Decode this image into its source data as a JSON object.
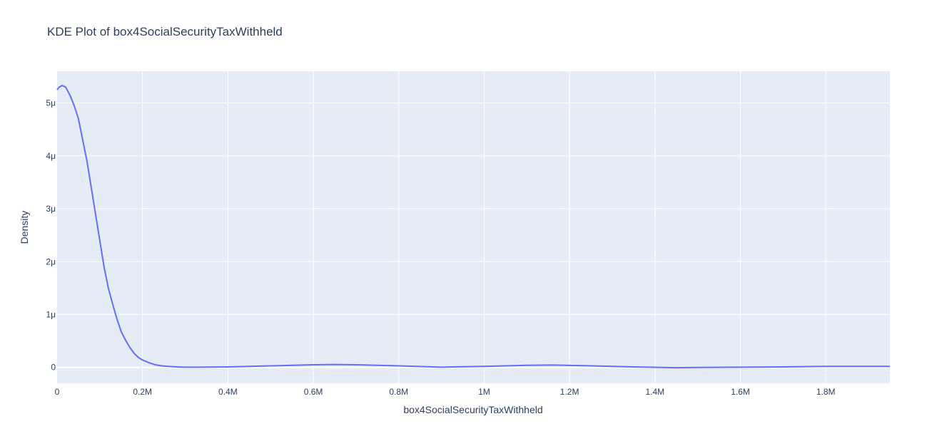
{
  "chart_data": {
    "type": "line",
    "title": "KDE Plot of box4SocialSecurityTaxWithheld",
    "xlabel": "box4SocialSecurityTaxWithheld",
    "ylabel": "Density",
    "xlim": [
      0,
      1950000
    ],
    "ylim": [
      -3e-07,
      5.6e-06
    ],
    "x_ticks": [
      {
        "value": 0,
        "label": "0"
      },
      {
        "value": 200000,
        "label": "0.2M"
      },
      {
        "value": 400000,
        "label": "0.4M"
      },
      {
        "value": 600000,
        "label": "0.6M"
      },
      {
        "value": 800000,
        "label": "0.8M"
      },
      {
        "value": 1000000,
        "label": "1M"
      },
      {
        "value": 1200000,
        "label": "1.2M"
      },
      {
        "value": 1400000,
        "label": "1.4M"
      },
      {
        "value": 1600000,
        "label": "1.6M"
      },
      {
        "value": 1800000,
        "label": "1.8M"
      }
    ],
    "y_ticks": [
      {
        "value": 0,
        "label": "0"
      },
      {
        "value": 1e-06,
        "label": "1μ"
      },
      {
        "value": 2e-06,
        "label": "2μ"
      },
      {
        "value": 3e-06,
        "label": "3μ"
      },
      {
        "value": 4e-06,
        "label": "4μ"
      },
      {
        "value": 5e-06,
        "label": "5μ"
      }
    ],
    "grid": true,
    "line_color": "#636efa",
    "plot_bg": "#e5ecf6",
    "series": [
      {
        "x": [
          0,
          5000,
          12000,
          20000,
          30000,
          40000,
          50000,
          60000,
          70000,
          80000,
          90000,
          100000,
          110000,
          120000,
          130000,
          140000,
          150000,
          160000,
          170000,
          180000,
          190000,
          200000,
          215000,
          230000,
          245000,
          260000,
          280000,
          300000,
          330000,
          400000,
          500000,
          600000,
          650000,
          700000,
          800000,
          900000,
          1000000,
          1100000,
          1160000,
          1250000,
          1350000,
          1450000,
          1500000,
          1600000,
          1700000,
          1800000,
          1950000
        ],
        "y": [
          5.25e-06,
          5.3e-06,
          5.33e-06,
          5.3e-06,
          5.15e-06,
          4.95e-06,
          4.7e-06,
          4.3e-06,
          3.9e-06,
          3.4e-06,
          2.9e-06,
          2.4e-06,
          1.9e-06,
          1.5e-06,
          1.2e-06,
          9.2e-07,
          6.8e-07,
          5.2e-07,
          3.8e-07,
          2.7e-07,
          1.9e-07,
          1.4e-07,
          9e-08,
          5e-08,
          3e-08,
          2e-08,
          1e-08,
          5e-09,
          4e-09,
          1e-08,
          3e-08,
          5e-08,
          5.5e-08,
          5e-08,
          3e-08,
          5e-09,
          2e-08,
          4e-08,
          4.5e-08,
          3e-08,
          1e-08,
          -5e-09,
          0.0,
          5e-09,
          1e-08,
          2e-08,
          2e-08
        ]
      }
    ]
  }
}
